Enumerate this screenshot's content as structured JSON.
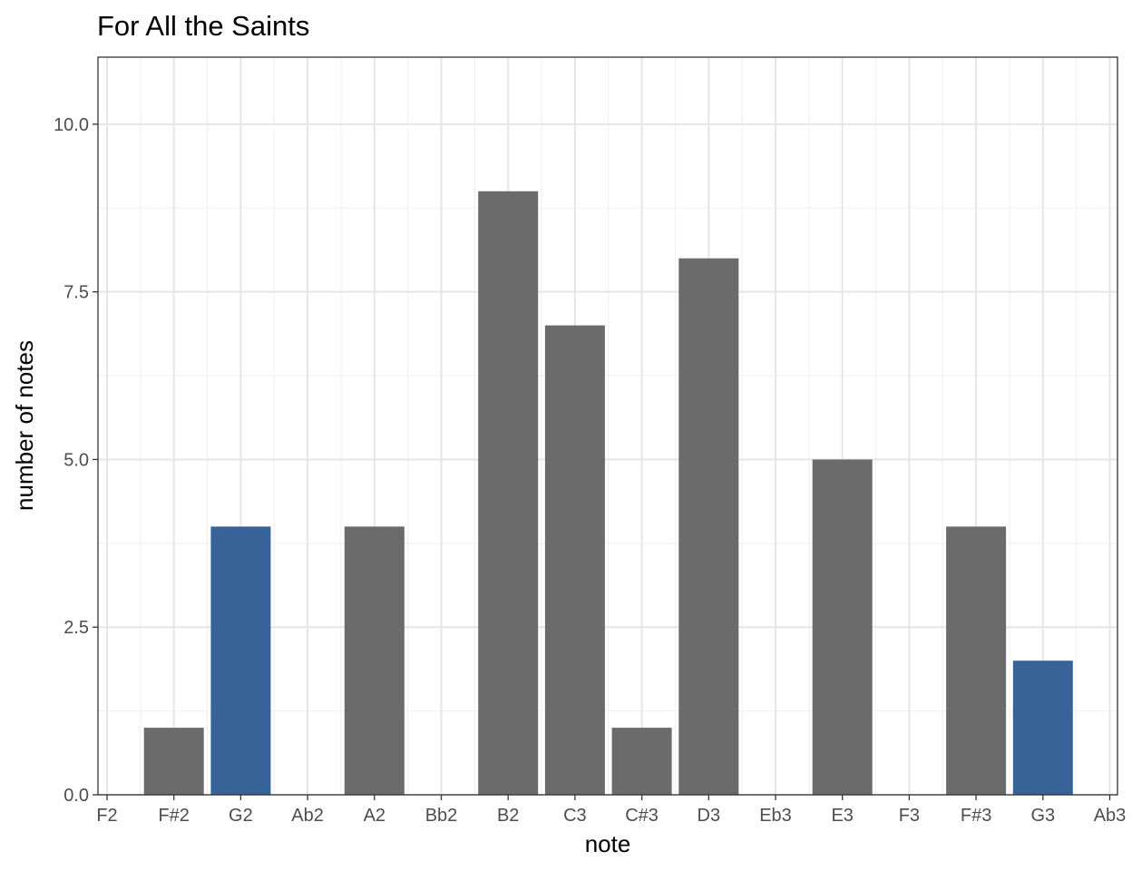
{
  "chart_data": {
    "type": "bar",
    "title": "For All the Saints",
    "xlabel": "note",
    "ylabel": "number of notes",
    "categories": [
      "F2",
      "F#2",
      "G2",
      "Ab2",
      "A2",
      "Bb2",
      "B2",
      "C3",
      "C#3",
      "D3",
      "Eb3",
      "E3",
      "F3",
      "F#3",
      "G3",
      "Ab3"
    ],
    "values": [
      0,
      1,
      4,
      0,
      4,
      0,
      9,
      7,
      1,
      8,
      0,
      5,
      0,
      4,
      2,
      0
    ],
    "highlighted": [
      "G2",
      "G3"
    ],
    "ylim": [
      0,
      11
    ],
    "yticks": [
      0,
      2.5,
      5,
      7.5,
      10
    ],
    "ytick_labels": [
      "0.0",
      "2.5",
      "5.0",
      "7.5",
      "10.0"
    ],
    "grid": true,
    "colors": {
      "bar": "#6b6b6b",
      "highlight": "#386399",
      "grid_major": "#e6e6e6",
      "grid_minor": "#f2f2f2",
      "border": "#333333"
    }
  }
}
